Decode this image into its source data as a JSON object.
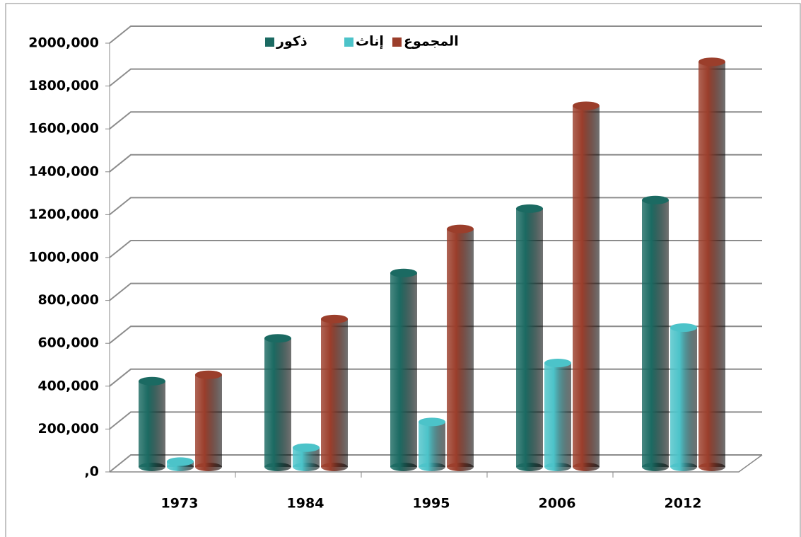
{
  "chart_data": {
    "type": "bar",
    "categories": [
      "1973",
      "1984",
      "1995",
      "2006",
      "2012"
    ],
    "series": [
      {
        "name": "ذكور",
        "color": "#1b6a62",
        "values": [
          400000,
          600000,
          905000,
          1205000,
          1245000
        ]
      },
      {
        "name": "إناث",
        "color": "#4cc3c9",
        "values": [
          25000,
          90000,
          210000,
          485000,
          650000
        ]
      },
      {
        "name": "المجموع",
        "color": "#9b3e2b",
        "values": [
          430000,
          690000,
          1110000,
          1685000,
          1890000
        ]
      }
    ],
    "ylim": [
      0,
      2000000
    ],
    "yticks": [
      {
        "value": 0,
        "label": ",0"
      },
      {
        "value": 200000,
        "label": "200,000"
      },
      {
        "value": 400000,
        "label": "400,000"
      },
      {
        "value": 600000,
        "label": "600,000"
      },
      {
        "value": 800000,
        "label": "800,000"
      },
      {
        "value": 1000000,
        "label": "1000,000"
      },
      {
        "value": 1200000,
        "label": "1200,000"
      },
      {
        "value": 1400000,
        "label": "1400,000"
      },
      {
        "value": 1600000,
        "label": "1600,000"
      },
      {
        "value": 1800000,
        "label": "1800,000"
      },
      {
        "value": 2000000,
        "label": "2000,000"
      }
    ],
    "grid": true
  }
}
